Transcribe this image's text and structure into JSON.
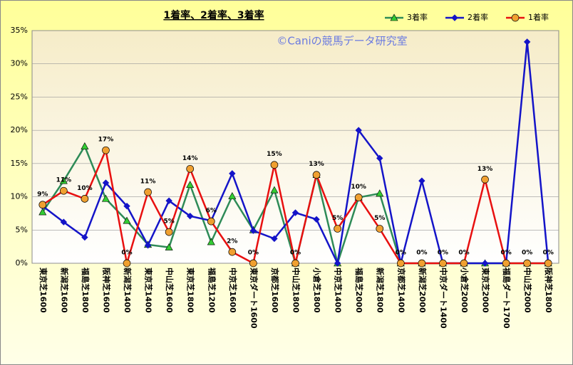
{
  "chart_data": {
    "type": "line",
    "title": "1着率、2着率、3着率",
    "annotation": "©Caniの競馬データ研究室",
    "categories": [
      "東京芝1600",
      "新潟芝1600",
      "福島芝1800",
      "阪神芝1600",
      "新潟芝1400",
      "東京芝1400",
      "中山芝1600",
      "東京芝1800",
      "福島芝1200",
      "中京芝1600",
      "東京ダート1600",
      "京都芝1600",
      "中山芝1800",
      "小倉芝1800",
      "中京芝1400",
      "福島芝2000",
      "新潟芝1800",
      "京都芝1400",
      "新潟芝2000",
      "中京ダート1400",
      "小倉芝2000",
      "東京芝2000",
      "福島ダート1700",
      "中山芝2000",
      "阪神芝1800"
    ],
    "series": [
      {
        "name": "3着率",
        "color": "#2e8b57",
        "marker": "triangle",
        "values": [
          7.7,
          12.4,
          17.6,
          9.7,
          6.4,
          2.8,
          2.4,
          11.8,
          3.2,
          10.1,
          5.0,
          11.0,
          0,
          13.3,
          0,
          9.9,
          10.5,
          0,
          0,
          0,
          0,
          0,
          0,
          0,
          0
        ]
      },
      {
        "name": "2着率",
        "color": "#1414c8",
        "marker": "diamond",
        "values": [
          8.6,
          6.2,
          3.9,
          12.1,
          8.6,
          2.7,
          9.4,
          7.1,
          6.4,
          13.5,
          4.9,
          3.7,
          7.6,
          6.6,
          0,
          20.0,
          15.8,
          0,
          12.4,
          0,
          0,
          0,
          0,
          33.3,
          0
        ]
      },
      {
        "name": "1着率",
        "color": "#e81010",
        "marker": "circle",
        "values": [
          8.8,
          10.9,
          9.7,
          17.0,
          0,
          10.7,
          4.7,
          14.2,
          6.3,
          1.7,
          0,
          14.8,
          0,
          13.3,
          5.2,
          9.9,
          5.2,
          0,
          0,
          0,
          0,
          12.6,
          0,
          0,
          0
        ],
        "value_labels": [
          "9%",
          "11%",
          "10%",
          "17%",
          "0%",
          "11%",
          "5%",
          "14%",
          "6%",
          "2%",
          "0%",
          "15%",
          "0%",
          "13%",
          "5%",
          "10%",
          "5%",
          "0%",
          "0%",
          "0%",
          "0%",
          "13%",
          "0%",
          "0%",
          "0%"
        ]
      }
    ],
    "ylim": [
      0,
      35
    ],
    "yticks": [
      {
        "value": 0,
        "label": "0%"
      },
      {
        "value": 5,
        "label": "5%"
      },
      {
        "value": 10,
        "label": "10%"
      },
      {
        "value": 15,
        "label": "15%"
      },
      {
        "value": 20,
        "label": "20%"
      },
      {
        "value": 25,
        "label": "25%"
      },
      {
        "value": 30,
        "label": "30%"
      },
      {
        "value": 35,
        "label": "35%"
      }
    ],
    "grid": true,
    "legend": "top-right"
  }
}
